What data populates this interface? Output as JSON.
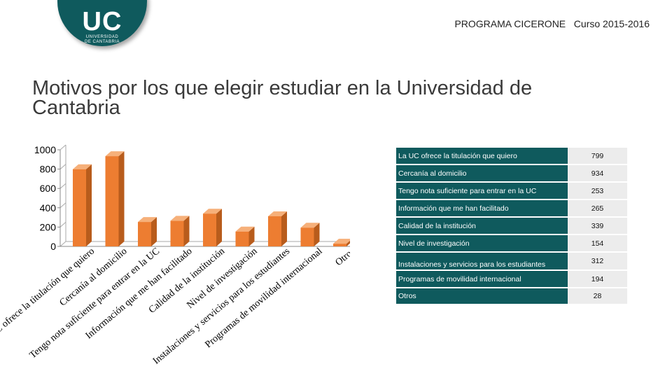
{
  "header": {
    "logo": {
      "letters": "UC",
      "line1": "UNIVERSIDAD",
      "line2": "DE CANTABRIA"
    },
    "program_text": "PROGRAMA CICERONE   Curso 2015-2016",
    "title": "Motivos por los que elegir estudiar en la Universidad de Cantabria"
  },
  "colors": {
    "bar": "#ed7d31",
    "bar_top": "#f6b07a",
    "bar_side": "#b85c1c",
    "table_dark": "#0f5a5d",
    "table_light": "#ececec"
  },
  "chart_data": {
    "type": "bar",
    "title": "Motivos por los que elegir estudiar en la Universidad de Cantabria",
    "xlabel": "",
    "ylabel": "",
    "ylim": [
      0,
      1000
    ],
    "yticks": [
      0,
      200,
      400,
      600,
      800,
      1000
    ],
    "grid": false,
    "categories": [
      "La UC ofrece la titulación que quiero",
      "Cercanía al domicilio",
      "Tengo nota suficiente para entrar en la UC",
      "Información que me han facilitado",
      "Calidad de la institución",
      "Nivel de investigación",
      "Instalaciones y servicios para los estudiantes",
      "Programas de movilidad internacional",
      "Otros"
    ],
    "values": [
      799,
      934,
      253,
      265,
      339,
      154,
      312,
      194,
      28
    ]
  }
}
